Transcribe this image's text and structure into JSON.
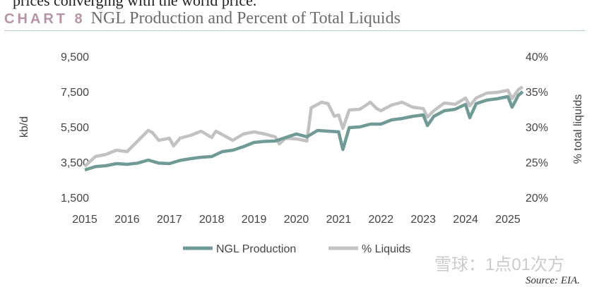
{
  "header": {
    "cut_text": "prices converging with the world price.",
    "chart_tag": "CHART 8",
    "title": "NGL Production and Percent of Total Liquids"
  },
  "footer": {
    "source": "Source: EIA.",
    "watermark": "雪球：1点01次方"
  },
  "colors": {
    "ngl": "#6f9a96",
    "liquids": "#c2c2c2",
    "tag": "#b793a8",
    "rule": "#b5ccc6"
  },
  "chart_data": {
    "type": "line",
    "ylabel": "kb/d",
    "y2label": "% total liquids",
    "xlim": [
      2015,
      2025.35
    ],
    "ylim": [
      1500,
      9500
    ],
    "y2lim": [
      20,
      40
    ],
    "xticks": [
      "2015",
      "2016",
      "2017",
      "2018",
      "2019",
      "2020",
      "2021",
      "2022",
      "2023",
      "2024",
      "2025"
    ],
    "yticks": [
      "9,500",
      "7,500",
      "5,500",
      "3,500",
      "1,500"
    ],
    "y2ticks": [
      "40%",
      "35%",
      "30%",
      "25%",
      "20%"
    ],
    "grid": false,
    "legend": "bottom",
    "series": [
      {
        "name": "NGL Production",
        "axis": "left",
        "x": [
          2015,
          2015.25,
          2015.5,
          2015.75,
          2016,
          2016.25,
          2016.5,
          2016.75,
          2017,
          2017.25,
          2017.5,
          2017.75,
          2018,
          2018.25,
          2018.5,
          2018.75,
          2019,
          2019.25,
          2019.5,
          2019.75,
          2020,
          2020.25,
          2020.5,
          2020.75,
          2021,
          2021.1,
          2021.25,
          2021.5,
          2021.75,
          2022,
          2022.25,
          2022.5,
          2022.75,
          2023,
          2023.1,
          2023.25,
          2023.5,
          2023.75,
          2024,
          2024.1,
          2024.25,
          2024.5,
          2024.75,
          2025,
          2025.1,
          2025.25,
          2025.35
        ],
        "values": [
          3060,
          3250,
          3300,
          3420,
          3380,
          3450,
          3620,
          3450,
          3420,
          3600,
          3700,
          3780,
          3820,
          4100,
          4180,
          4380,
          4620,
          4680,
          4700,
          4900,
          5100,
          4940,
          5300,
          5260,
          5220,
          4220,
          5460,
          5500,
          5660,
          5660,
          5900,
          5980,
          6100,
          6180,
          5580,
          6100,
          6420,
          6500,
          6780,
          6020,
          6820,
          7020,
          7100,
          7220,
          6620,
          7300,
          7500
        ]
      },
      {
        "name": "% Liquids",
        "axis": "right",
        "x": [
          2015,
          2015.25,
          2015.5,
          2015.75,
          2016,
          2016.25,
          2016.5,
          2016.6,
          2016.75,
          2017,
          2017.1,
          2017.25,
          2017.5,
          2017.75,
          2018,
          2018.1,
          2018.5,
          2018.75,
          2019,
          2019.25,
          2019.5,
          2019.6,
          2019.75,
          2020,
          2020.1,
          2020.25,
          2020.35,
          2020.5,
          2020.6,
          2020.75,
          2020.9,
          2021,
          2021.1,
          2021.25,
          2021.5,
          2021.75,
          2021.9,
          2022,
          2022.25,
          2022.5,
          2022.75,
          2023,
          2023.1,
          2023.25,
          2023.5,
          2023.75,
          2024,
          2024.1,
          2024.25,
          2024.5,
          2024.75,
          2025,
          2025.1,
          2025.25,
          2025.35
        ],
        "values": [
          24.4,
          25.8,
          26.1,
          26.7,
          26.5,
          28.0,
          29.5,
          29.2,
          28.1,
          28.4,
          27.3,
          28.4,
          28.8,
          29.4,
          28.5,
          29.4,
          28.1,
          29.0,
          29.3,
          29.0,
          28.6,
          27.6,
          28.4,
          28.3,
          28.2,
          28.0,
          32.7,
          33.2,
          33.5,
          33.3,
          31.5,
          31.7,
          29.8,
          32.4,
          32.5,
          33.5,
          32.6,
          32.3,
          33.1,
          33.5,
          32.8,
          32.6,
          31.4,
          32.3,
          33.4,
          33.2,
          34.1,
          33.0,
          34.1,
          34.8,
          34.9,
          35.2,
          34.0,
          35.3,
          35.7
        ]
      }
    ]
  }
}
